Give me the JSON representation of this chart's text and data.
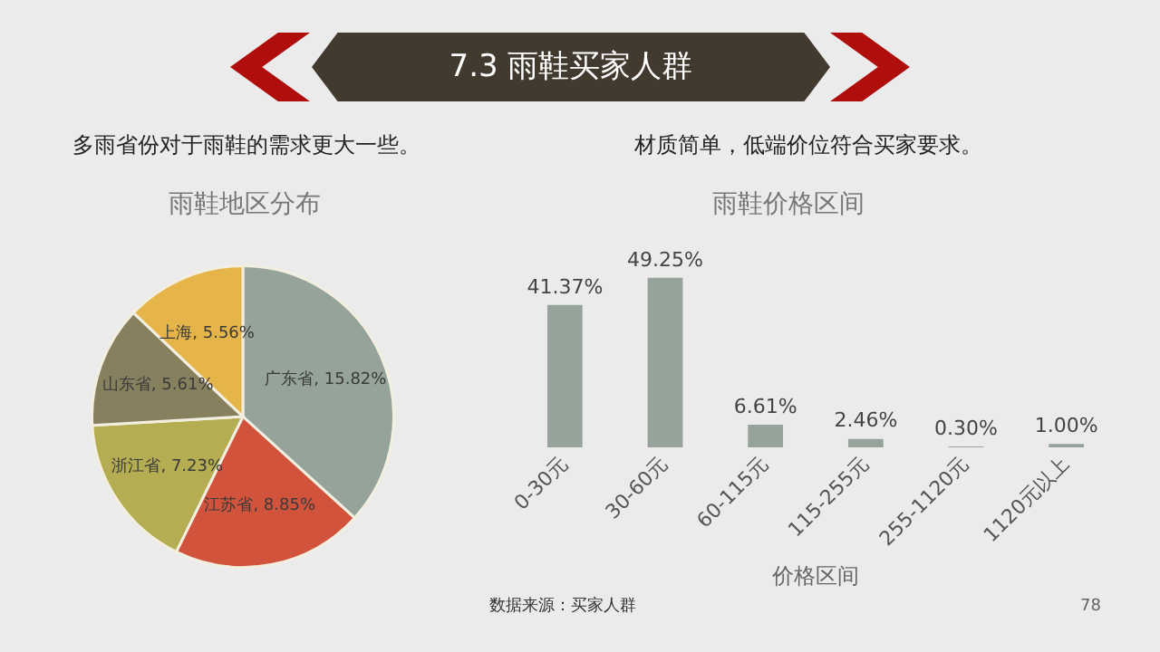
{
  "chart_data": [
    {
      "type": "pie",
      "title": "雨鞋地区分布",
      "subtitle": "多雨省份对于雨鞋的需求更大一些。",
      "categories": [
        "广东省",
        "江苏省",
        "浙江省",
        "山东省",
        "上海"
      ],
      "values": [
        15.82,
        8.85,
        7.23,
        5.61,
        5.56
      ],
      "value_labels": [
        "15.82%",
        "8.85%",
        "7.23%",
        "5.61%",
        "5.56%"
      ],
      "colors": [
        "#95a39a",
        "#d2533c",
        "#b4ad52",
        "#86805e",
        "#e6b54a"
      ],
      "legend": false,
      "annotations": [
        "7.3 雨鞋买家人群",
        "数据来源：买家人群",
        "78"
      ]
    },
    {
      "type": "bar",
      "title": "雨鞋价格区间",
      "subtitle": "材质简单，低端价位符合买家要求。",
      "xlabel": "价格区间",
      "categories": [
        "0-30元",
        "30-60元",
        "60-115元",
        "115-255元",
        "255-1120元",
        "1120元以上"
      ],
      "values": [
        41.37,
        49.25,
        6.61,
        2.46,
        0.3,
        1.0
      ],
      "value_labels": [
        "41.37%",
        "49.25%",
        "6.61%",
        "2.46%",
        "0.30%",
        "1.00%"
      ],
      "color": "#95a39a",
      "tick_labels": "x",
      "grid": false,
      "legend": false
    }
  ]
}
